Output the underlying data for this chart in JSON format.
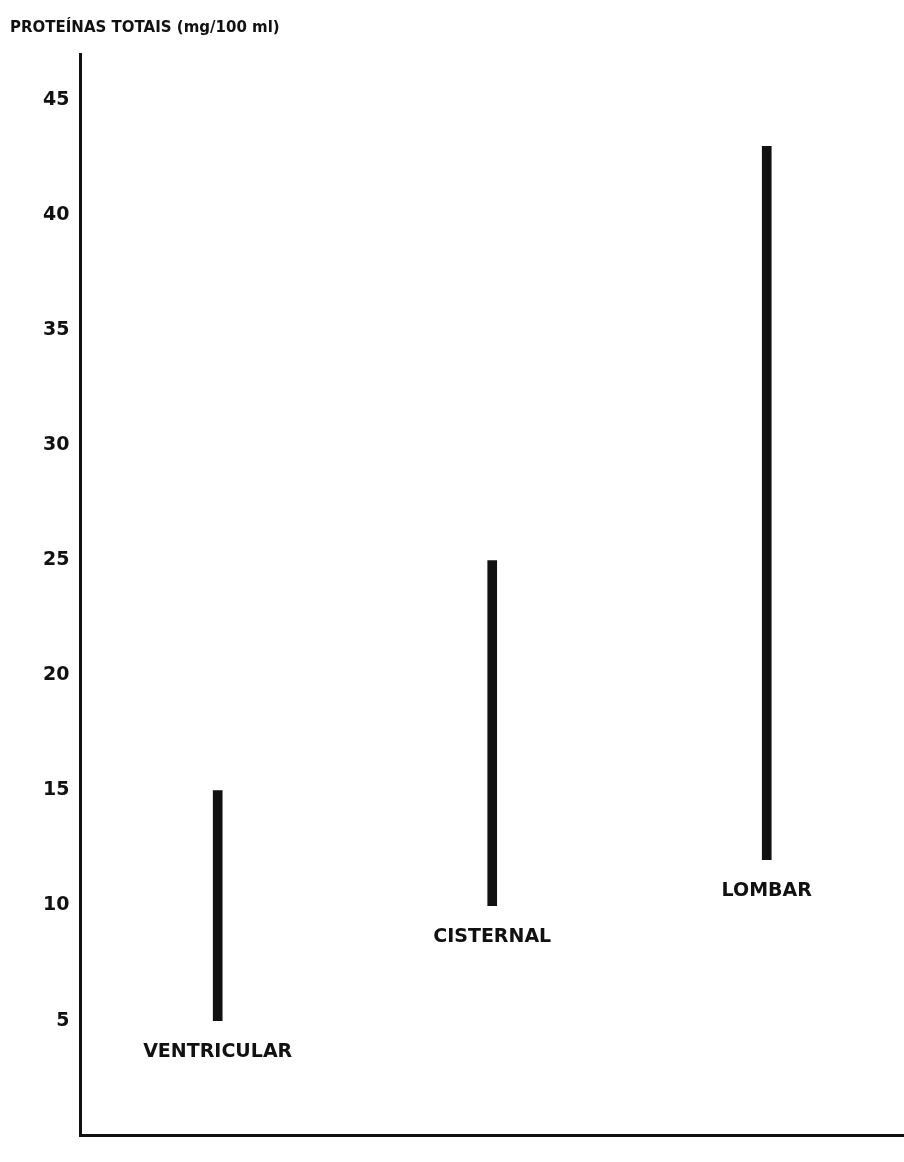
{
  "chart_data": {
    "type": "bar",
    "ylabel": "PROTEÍNAS TOTAIS (mg/100 ml)",
    "categories": [
      "VENTRICULAR",
      "CISTERNAL",
      "LOMBAR"
    ],
    "base": [
      5,
      10,
      12
    ],
    "values": [
      10,
      15,
      31
    ],
    "color": "#111111",
    "ylim": [
      0,
      47
    ],
    "yticks": [
      5,
      10,
      15,
      20,
      25,
      30,
      35,
      40,
      45
    ]
  }
}
